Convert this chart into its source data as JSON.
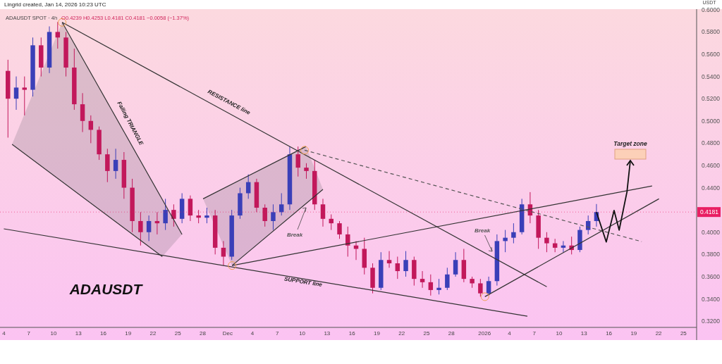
{
  "chart_data": {
    "type": "candlestick",
    "title": "ADAUSDT SPOT · 4h",
    "subtitle": "O0.4239 H0.4253 L0.4181 C0.4181 −0.0058 (−1.37%)",
    "ylabel": "USDT",
    "x": [
      "2025-11-04T12:00",
      "2025-11-05T12:00",
      "2025-11-06T12:00",
      "2025-11-07T12:00",
      "2025-11-08T12:00",
      "2025-11-09T12:00",
      "2025-11-10T12:00",
      "2025-11-11T12:00",
      "2025-11-12T12:00",
      "2025-11-13T12:00",
      "2025-11-14T12:00",
      "2025-11-15T12:00",
      "2025-11-16T12:00",
      "2025-11-17T12:00",
      "2025-11-18T12:00",
      "2025-11-19T12:00",
      "2025-11-20T12:00",
      "2025-11-21T12:00",
      "2025-11-22T12:00",
      "2025-11-23T12:00",
      "2025-11-24T12:00",
      "2025-11-25T12:00",
      "2025-11-26T12:00",
      "2025-11-27T12:00",
      "2025-11-28T12:00",
      "2025-11-29T12:00",
      "2025-11-30T12:00",
      "2025-12-01T12:00",
      "2025-12-02T12:00",
      "2025-12-03T12:00",
      "2025-12-04T12:00",
      "2025-12-05T12:00",
      "2025-12-06T12:00",
      "2025-12-07T12:00",
      "2025-12-08T12:00",
      "2025-12-09T12:00",
      "2025-12-10T12:00",
      "2025-12-11T12:00",
      "2025-12-12T12:00",
      "2025-12-13T12:00",
      "2025-12-14T12:00",
      "2025-12-15T12:00",
      "2025-12-16T12:00",
      "2025-12-17T12:00",
      "2025-12-18T12:00",
      "2025-12-19T12:00",
      "2025-12-20T12:00",
      "2025-12-21T12:00",
      "2025-12-22T12:00",
      "2025-12-23T12:00",
      "2025-12-24T12:00",
      "2025-12-25T12:00",
      "2025-12-26T12:00",
      "2025-12-27T12:00",
      "2025-12-28T12:00",
      "2025-12-29T12:00",
      "2025-12-30T12:00",
      "2025-12-31T12:00",
      "2026-01-01T12:00",
      "2026-01-02T12:00",
      "2026-01-03T12:00",
      "2026-01-04T12:00",
      "2026-01-05T12:00",
      "2026-01-06T12:00",
      "2026-01-07T12:00",
      "2026-01-08T12:00",
      "2026-01-09T12:00",
      "2026-01-10T12:00",
      "2026-01-11T12:00",
      "2026-01-12T12:00",
      "2026-01-13T12:00",
      "2026-01-14T12:00"
    ],
    "ohlc": [
      [
        0.545,
        0.555,
        0.485,
        0.52
      ],
      [
        0.52,
        0.54,
        0.51,
        0.53
      ],
      [
        0.53,
        0.54,
        0.505,
        0.528
      ],
      [
        0.528,
        0.575,
        0.522,
        0.568
      ],
      [
        0.568,
        0.575,
        0.54,
        0.548
      ],
      [
        0.548,
        0.585,
        0.543,
        0.58
      ],
      [
        0.58,
        0.589,
        0.565,
        0.575
      ],
      [
        0.575,
        0.58,
        0.54,
        0.548
      ],
      [
        0.548,
        0.565,
        0.51,
        0.515
      ],
      [
        0.515,
        0.525,
        0.49,
        0.5
      ],
      [
        0.5,
        0.505,
        0.48,
        0.492
      ],
      [
        0.492,
        0.495,
        0.465,
        0.47
      ],
      [
        0.47,
        0.475,
        0.445,
        0.455
      ],
      [
        0.455,
        0.475,
        0.448,
        0.465
      ],
      [
        0.465,
        0.472,
        0.43,
        0.44
      ],
      [
        0.44,
        0.448,
        0.4,
        0.41
      ],
      [
        0.41,
        0.418,
        0.388,
        0.4
      ],
      [
        0.4,
        0.415,
        0.392,
        0.41
      ],
      [
        0.41,
        0.418,
        0.398,
        0.408
      ],
      [
        0.408,
        0.43,
        0.402,
        0.42
      ],
      [
        0.42,
        0.425,
        0.405,
        0.412
      ],
      [
        0.412,
        0.435,
        0.408,
        0.43
      ],
      [
        0.43,
        0.433,
        0.41,
        0.415
      ],
      [
        0.415,
        0.42,
        0.408,
        0.413
      ],
      [
        0.413,
        0.422,
        0.408,
        0.415
      ],
      [
        0.415,
        0.42,
        0.38,
        0.386
      ],
      [
        0.386,
        0.392,
        0.37,
        0.378
      ],
      [
        0.378,
        0.42,
        0.375,
        0.415
      ],
      [
        0.415,
        0.44,
        0.412,
        0.435
      ],
      [
        0.435,
        0.452,
        0.43,
        0.445
      ],
      [
        0.445,
        0.448,
        0.418,
        0.422
      ],
      [
        0.422,
        0.425,
        0.405,
        0.41
      ],
      [
        0.41,
        0.425,
        0.402,
        0.418
      ],
      [
        0.418,
        0.435,
        0.415,
        0.425
      ],
      [
        0.425,
        0.477,
        0.42,
        0.47
      ],
      [
        0.47,
        0.477,
        0.45,
        0.458
      ],
      [
        0.458,
        0.462,
        0.448,
        0.455
      ],
      [
        0.455,
        0.465,
        0.42,
        0.425
      ],
      [
        0.425,
        0.43,
        0.405,
        0.412
      ],
      [
        0.412,
        0.416,
        0.402,
        0.408
      ],
      [
        0.408,
        0.41,
        0.394,
        0.398
      ],
      [
        0.398,
        0.405,
        0.378,
        0.388
      ],
      [
        0.388,
        0.392,
        0.375,
        0.385
      ],
      [
        0.385,
        0.395,
        0.362,
        0.368
      ],
      [
        0.368,
        0.372,
        0.345,
        0.35
      ],
      [
        0.35,
        0.382,
        0.348,
        0.375
      ],
      [
        0.375,
        0.383,
        0.368,
        0.372
      ],
      [
        0.372,
        0.378,
        0.358,
        0.365
      ],
      [
        0.365,
        0.383,
        0.36,
        0.375
      ],
      [
        0.375,
        0.378,
        0.352,
        0.358
      ],
      [
        0.358,
        0.365,
        0.35,
        0.355
      ],
      [
        0.355,
        0.362,
        0.343,
        0.348
      ],
      [
        0.348,
        0.358,
        0.344,
        0.35
      ],
      [
        0.35,
        0.368,
        0.348,
        0.362
      ],
      [
        0.362,
        0.382,
        0.36,
        0.375
      ],
      [
        0.375,
        0.385,
        0.355,
        0.358
      ],
      [
        0.358,
        0.36,
        0.35,
        0.354
      ],
      [
        0.354,
        0.358,
        0.342,
        0.345
      ],
      [
        0.345,
        0.36,
        0.343,
        0.356
      ],
      [
        0.356,
        0.398,
        0.352,
        0.392
      ],
      [
        0.392,
        0.402,
        0.382,
        0.395
      ],
      [
        0.395,
        0.408,
        0.39,
        0.4
      ],
      [
        0.4,
        0.43,
        0.398,
        0.425
      ],
      [
        0.425,
        0.436,
        0.408,
        0.415
      ],
      [
        0.415,
        0.42,
        0.385,
        0.395
      ],
      [
        0.395,
        0.4,
        0.382,
        0.39
      ],
      [
        0.39,
        0.394,
        0.382,
        0.386
      ],
      [
        0.386,
        0.392,
        0.382,
        0.388
      ],
      [
        0.388,
        0.396,
        0.38,
        0.384
      ],
      [
        0.384,
        0.405,
        0.382,
        0.402
      ],
      [
        0.402,
        0.415,
        0.398,
        0.41
      ],
      [
        0.41,
        0.4253,
        0.405,
        0.4181
      ]
    ],
    "series": [
      {
        "type": "line",
        "color": "#333333",
        "x": [
          "2025-11-11T01:00",
          "2026-01-08T12:00"
        ],
        "values": [
          0.5886,
          0.351
        ]
      },
      {
        "type": "line",
        "color": "#333333",
        "x": [
          "2025-11-04",
          "2026-01-06T04:00"
        ],
        "values": [
          0.403,
          0.3245
        ]
      },
      {
        "type": "line",
        "color": "#333333",
        "x": [
          "2025-11-05",
          "2025-11-23T03:00"
        ],
        "values": [
          0.479,
          0.378
        ]
      },
      {
        "type": "line",
        "color": "#333333",
        "x": [
          "2025-11-11T01:00",
          "2025-11-25T12:00"
        ],
        "values": [
          0.5886,
          0.398
        ]
      },
      {
        "type": "line",
        "color": "#333333",
        "x": [
          "2025-11-28T01:00",
          "2025-12-10T11:00"
        ],
        "values": [
          0.43,
          0.477
        ]
      },
      {
        "type": "line",
        "color": "#333333",
        "x": [
          "2025-12-01T13:00",
          "2025-12-12T12:00"
        ],
        "values": [
          0.37,
          0.4385
        ]
      },
      {
        "type": "line",
        "color": "#333333",
        "x": [
          "2025-12-01T13:00",
          "2026-01-21T05:00"
        ],
        "values": [
          0.37,
          0.4415
        ]
      },
      {
        "type": "line",
        "color": "#333333",
        "x": [
          "2026-01-01T01:00",
          "2026-01-22T01:00"
        ],
        "values": [
          0.342,
          0.43
        ]
      },
      {
        "type": "line",
        "color": "#555555",
        "line_style": "dashed",
        "x": [
          "2025-12-10T07:00",
          "2026-01-19T23:00"
        ],
        "values": [
          0.4737,
          0.3915
        ]
      }
    ],
    "annotations": [
      "Lingrid created, Jan 14, 2026 10:23 UTC",
      "ADAUSDT",
      "Falling TRIANGLE",
      "RESISTANCE line",
      "SUPPORT line",
      "Break",
      "Break",
      "Target zone"
    ],
    "ref_lines": [
      {
        "axis": "y",
        "value": 0.4181,
        "label": "0.4181",
        "color": "#e91e63"
      }
    ],
    "xlim": [
      "2025-11-03T13:00",
      "2026-01-26T14:00"
    ],
    "ylim": [
      0.3144,
      0.6005
    ],
    "xticks": [
      {
        "value": "2025-11-04",
        "label": "4"
      },
      {
        "value": "2025-11-07",
        "label": "7"
      },
      {
        "value": "2025-11-10",
        "label": "10"
      },
      {
        "value": "2025-11-13",
        "label": "13"
      },
      {
        "value": "2025-11-16",
        "label": "16"
      },
      {
        "value": "2025-11-19",
        "label": "19"
      },
      {
        "value": "2025-11-22",
        "label": "22"
      },
      {
        "value": "2025-11-25",
        "label": "25"
      },
      {
        "value": "2025-11-28",
        "label": "28"
      },
      {
        "value": "2025-12-01",
        "label": "Dec"
      },
      {
        "value": "2025-12-04",
        "label": "4"
      },
      {
        "value": "2025-12-07",
        "label": "7"
      },
      {
        "value": "2025-12-10",
        "label": "10"
      },
      {
        "value": "2025-12-13",
        "label": "13"
      },
      {
        "value": "2025-12-16",
        "label": "16"
      },
      {
        "value": "2025-12-19",
        "label": "19"
      },
      {
        "value": "2025-12-22",
        "label": "22"
      },
      {
        "value": "2025-12-25",
        "label": "25"
      },
      {
        "value": "2025-12-28",
        "label": "28"
      },
      {
        "value": "2026-01-01",
        "label": "2026"
      },
      {
        "value": "2026-01-04",
        "label": "4"
      },
      {
        "value": "2026-01-07",
        "label": "7"
      },
      {
        "value": "2026-01-10",
        "label": "10"
      },
      {
        "value": "2026-01-13",
        "label": "13"
      },
      {
        "value": "2026-01-16",
        "label": "16"
      },
      {
        "value": "2026-01-19",
        "label": "19"
      },
      {
        "value": "2026-01-22",
        "label": "22"
      },
      {
        "value": "2026-01-25",
        "label": "25"
      }
    ],
    "yticks": [
      {
        "value": 0.32,
        "label": "0.3200"
      },
      {
        "value": 0.34,
        "label": "0.3400"
      },
      {
        "value": 0.36,
        "label": "0.3600"
      },
      {
        "value": 0.38,
        "label": "0.3800"
      },
      {
        "value": 0.4,
        "label": "0.4000"
      },
      {
        "value": 0.44,
        "label": "0.4400"
      },
      {
        "value": 0.46,
        "label": "0.4600"
      },
      {
        "value": 0.48,
        "label": "0.4800"
      },
      {
        "value": 0.5,
        "label": "0.5000"
      },
      {
        "value": 0.52,
        "label": "0.5200"
      },
      {
        "value": 0.54,
        "label": "0.5400"
      },
      {
        "value": 0.56,
        "label": "0.5600"
      },
      {
        "value": 0.58,
        "label": "0.5800"
      },
      {
        "value": 0.6,
        "label": "0.6000"
      }
    ]
  }
}
